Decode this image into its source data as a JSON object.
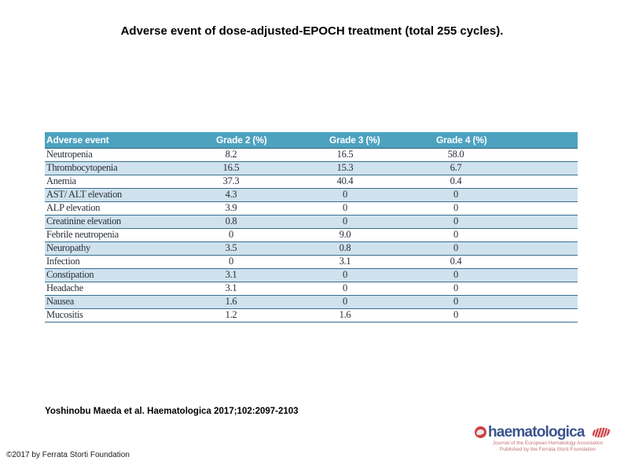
{
  "slide": {
    "title": "Adverse event of dose-adjusted-EPOCH treatment (total 255 cycles).",
    "citation": "Yoshinobu Maeda et al. Haematologica 2017;102:2097-2103",
    "copyright": "©2017 by Ferrata Storti Foundation"
  },
  "table": {
    "columns": [
      "Adverse event",
      "Grade 2 (%)",
      "Grade 3 (%)",
      "Grade 4 (%)"
    ],
    "rows": [
      {
        "event": "Neutropenia",
        "g2": "8.2",
        "g3": "16.5",
        "g4": "58.0"
      },
      {
        "event": "Thrombocytopenia",
        "g2": "16.5",
        "g3": "15.3",
        "g4": "6.7"
      },
      {
        "event": "Anemia",
        "g2": "37.3",
        "g3": "40.4",
        "g4": "0.4"
      },
      {
        "event": "AST/ ALT elevation",
        "g2": "4.3",
        "g3": "0",
        "g4": "0"
      },
      {
        "event": "ALP elevation",
        "g2": "3.9",
        "g3": "0",
        "g4": "0"
      },
      {
        "event": "Creatinine elevation",
        "g2": "0.8",
        "g3": "0",
        "g4": "0"
      },
      {
        "event": "Febrile neutropenia",
        "g2": "0",
        "g3": "9.0",
        "g4": "0"
      },
      {
        "event": "Neuropathy",
        "g2": "3.5",
        "g3": "0.8",
        "g4": "0"
      },
      {
        "event": "Infection",
        "g2": "0",
        "g3": "3.1",
        "g4": "0.4"
      },
      {
        "event": "Constipation",
        "g2": "3.1",
        "g3": "0",
        "g4": "0"
      },
      {
        "event": "Headache",
        "g2": "3.1",
        "g3": "0",
        "g4": "0"
      },
      {
        "event": "Nausea",
        "g2": "1.6",
        "g3": "0",
        "g4": "0"
      },
      {
        "event": "Mucositis",
        "g2": "1.2",
        "g3": "1.6",
        "g4": "0"
      }
    ]
  },
  "logo": {
    "wordmark": "haematologica",
    "tagline_line1": "Journal of the European Hematology Association",
    "tagline_line2": "Published by the Ferrata Storti Foundation"
  },
  "colors": {
    "table_header_bg": "#4da2c0",
    "table_stripe": "#cfe2ee",
    "table_row_border": "#376f8d",
    "logo_blue": "#3a548e",
    "logo_red": "#cf3f44",
    "tagline_red": "#c4737b"
  }
}
